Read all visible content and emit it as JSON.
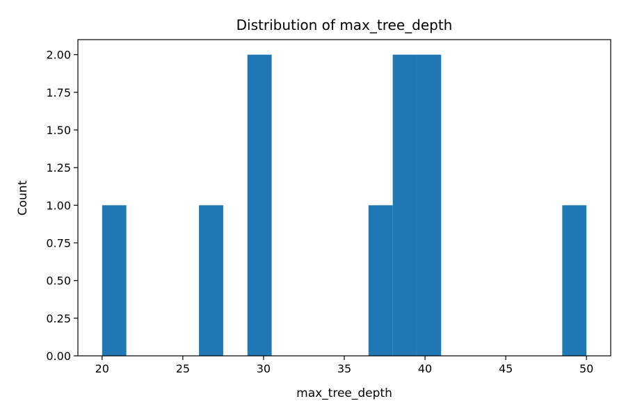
{
  "chart_data": {
    "type": "bar",
    "title": "Distribution of max_tree_depth",
    "xlabel": "max_tree_depth",
    "ylabel": "Count",
    "xlim": [
      18.5,
      51.5
    ],
    "ylim": [
      0,
      2.1
    ],
    "bins": [
      {
        "x0": 20.0,
        "x1": 21.5,
        "count": 1
      },
      {
        "x0": 26.0,
        "x1": 27.5,
        "count": 1
      },
      {
        "x0": 29.0,
        "x1": 30.5,
        "count": 2
      },
      {
        "x0": 36.5,
        "x1": 38.0,
        "count": 1
      },
      {
        "x0": 38.0,
        "x1": 39.5,
        "count": 2
      },
      {
        "x0": 39.5,
        "x1": 41.0,
        "count": 2
      },
      {
        "x0": 48.5,
        "x1": 50.0,
        "count": 1
      }
    ],
    "x_ticks": [
      20,
      25,
      30,
      35,
      40,
      45,
      50
    ],
    "x_tick_labels": [
      "20",
      "25",
      "30",
      "35",
      "40",
      "45",
      "50"
    ],
    "y_ticks": [
      0,
      0.25,
      0.5,
      0.75,
      1.0,
      1.25,
      1.5,
      1.75,
      2.0
    ],
    "y_tick_labels": [
      "0.00",
      "0.25",
      "0.50",
      "0.75",
      "1.00",
      "1.25",
      "1.50",
      "1.75",
      "2.00"
    ],
    "grid": false,
    "legend": "none",
    "colors": {
      "bar": "#1f77b4",
      "axis": "#000000",
      "background": "#ffffff"
    }
  }
}
